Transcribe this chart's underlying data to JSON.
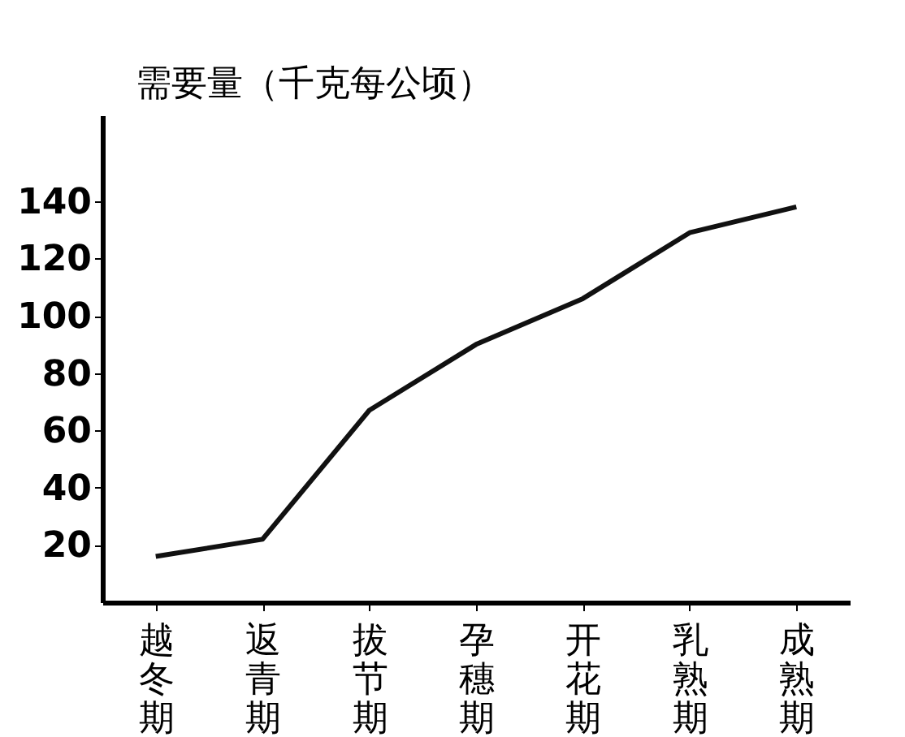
{
  "chart_data": {
    "type": "line",
    "ylabel": "需要量（千克每公顷）",
    "categories": [
      "越冬期",
      "返青期",
      "拔节期",
      "孕穗期",
      "开花期",
      "乳熟期",
      "成熟期"
    ],
    "values": [
      16,
      22,
      67,
      90,
      106,
      129,
      138
    ],
    "color": "#111111",
    "ylim": [
      0,
      170
    ],
    "yticks": [
      20,
      40,
      60,
      80,
      100,
      120,
      140
    ],
    "grid": false,
    "legend": false,
    "marker": "none",
    "line_style": "solid"
  }
}
